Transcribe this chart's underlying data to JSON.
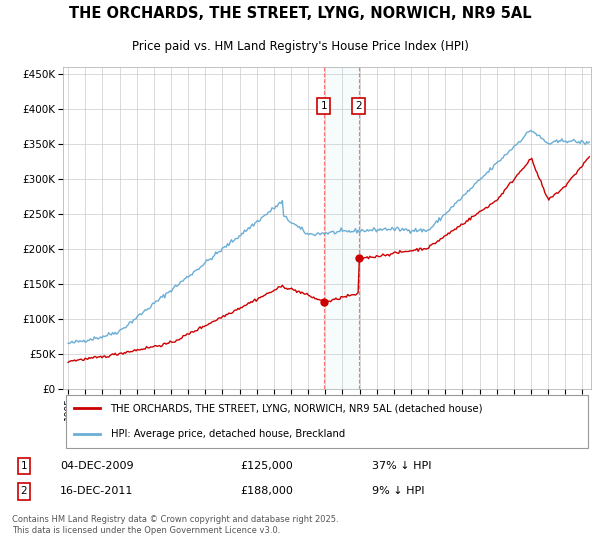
{
  "title": "THE ORCHARDS, THE STREET, LYNG, NORWICH, NR9 5AL",
  "subtitle": "Price paid vs. HM Land Registry's House Price Index (HPI)",
  "legend_line1": "THE ORCHARDS, THE STREET, LYNG, NORWICH, NR9 5AL (detached house)",
  "legend_line2": "HPI: Average price, detached house, Breckland",
  "annotation1_label": "1",
  "annotation1_date": "04-DEC-2009",
  "annotation1_price": "£125,000",
  "annotation1_hpi": "37% ↓ HPI",
  "annotation2_label": "2",
  "annotation2_date": "16-DEC-2011",
  "annotation2_price": "£188,000",
  "annotation2_hpi": "9% ↓ HPI",
  "footer": "Contains HM Land Registry data © Crown copyright and database right 2025.\nThis data is licensed under the Open Government Licence v3.0.",
  "sale1_year": 2009.92,
  "sale1_value": 125000,
  "sale2_year": 2011.96,
  "sale2_value": 188000,
  "hpi_color": "#6baed6",
  "price_color": "#cc0000",
  "background_color": "#ffffff",
  "ylim": [
    0,
    460000
  ],
  "xlim_start": 1994.7,
  "xlim_end": 2025.5,
  "yticks": [
    0,
    50000,
    100000,
    150000,
    200000,
    250000,
    300000,
    350000,
    400000,
    450000
  ],
  "ylabels": [
    "£0",
    "£50K",
    "£100K",
    "£150K",
    "£200K",
    "£250K",
    "£300K",
    "£350K",
    "£400K",
    "£450K"
  ]
}
